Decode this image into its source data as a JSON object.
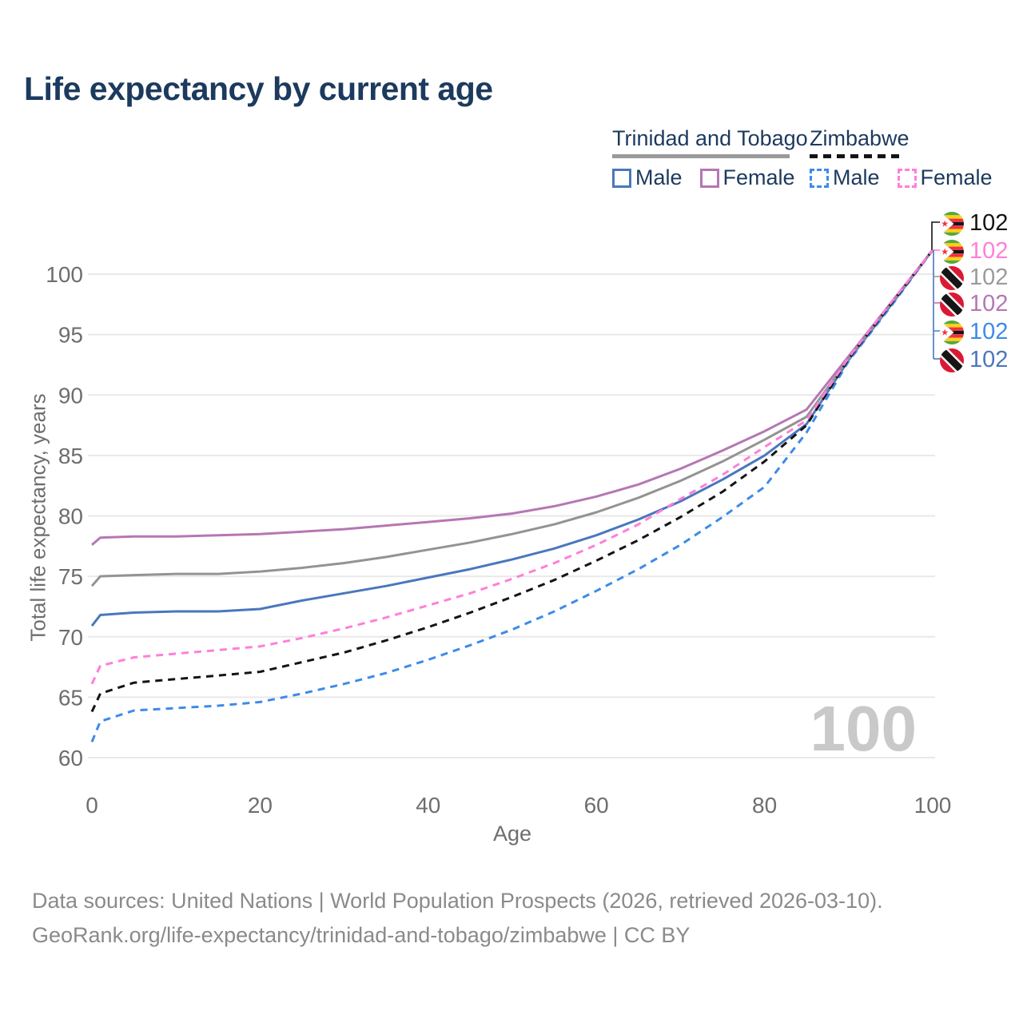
{
  "title": "Life expectancy by current age",
  "watermark": "100",
  "legend": {
    "groups": [
      {
        "label": "Trinidad and Tobago",
        "line_style": "solid",
        "underline_color": "#9a9a9a",
        "items": [
          {
            "label": "Male",
            "color": "#4a77bd"
          },
          {
            "label": "Female",
            "color": "#b577b3"
          }
        ]
      },
      {
        "label": "Zimbabwe",
        "line_style": "dashed",
        "underline_color": "#141414",
        "items": [
          {
            "label": "Male",
            "color": "#3d8be8"
          },
          {
            "label": "Female",
            "color": "#ff7fd8"
          }
        ]
      }
    ]
  },
  "end_labels": [
    {
      "flag": "zimbabwe",
      "series": "Zimbabwe Total",
      "value": "102",
      "color": "#141414"
    },
    {
      "flag": "zimbabwe",
      "series": "Zimbabwe Female",
      "value": "102",
      "color": "#ff7fd8"
    },
    {
      "flag": "trinidad-and-tobago",
      "series": "Trinidad and Tobago Total",
      "value": "102",
      "color": "#9a9a9a"
    },
    {
      "flag": "trinidad-and-tobago",
      "series": "Trinidad and Tobago Female",
      "value": "102",
      "color": "#b577b3"
    },
    {
      "flag": "zimbabwe",
      "series": "Zimbabwe Male",
      "value": "102",
      "color": "#3d8be8"
    },
    {
      "flag": "trinidad-and-tobago",
      "series": "Trinidad and Tobago Male",
      "value": "102",
      "color": "#4a77bd"
    }
  ],
  "footer": {
    "line1": "Data sources: United Nations | World Population Prospects (2026, retrieved 2026-03-10).",
    "line2": "GeoRank.org/life-expectancy/trinidad-and-tobago/zimbabwe | CC BY"
  },
  "chart_data": {
    "type": "line",
    "title": "Life expectancy by current age",
    "xlabel": "Age",
    "ylabel": "Total life expectancy, years",
    "xlim": [
      0,
      100
    ],
    "ylim": [
      60,
      103
    ],
    "x_ticks": [
      0,
      20,
      40,
      60,
      80,
      100
    ],
    "y_ticks": [
      60,
      65,
      70,
      75,
      80,
      85,
      90,
      95,
      100
    ],
    "grid": "horizontal",
    "legend_position": "top-right",
    "x": [
      0,
      1,
      5,
      10,
      15,
      20,
      25,
      30,
      35,
      40,
      45,
      50,
      55,
      60,
      65,
      70,
      75,
      80,
      85,
      90,
      95,
      100
    ],
    "series": [
      {
        "id": "tt_male",
        "name": "Trinidad and Tobago — Male",
        "color": "#4a77bd",
        "dash": null,
        "values": [
          70.9,
          71.8,
          72.0,
          72.1,
          72.1,
          72.3,
          73.0,
          73.6,
          74.2,
          74.9,
          75.6,
          76.4,
          77.3,
          78.4,
          79.7,
          81.2,
          83.0,
          85.0,
          87.6,
          92.9,
          97.4,
          102
        ]
      },
      {
        "id": "tt_overall",
        "name": "Trinidad and Tobago — Total",
        "color": "#939393",
        "dash": null,
        "values": [
          74.2,
          75.0,
          75.1,
          75.2,
          75.2,
          75.4,
          75.7,
          76.1,
          76.6,
          77.2,
          77.8,
          78.5,
          79.3,
          80.3,
          81.5,
          82.9,
          84.5,
          86.3,
          88.2,
          93.0,
          97.5,
          102
        ]
      },
      {
        "id": "tt_female",
        "name": "Trinidad and Tobago — Female",
        "color": "#b577b3",
        "dash": null,
        "values": [
          77.6,
          78.2,
          78.3,
          78.3,
          78.4,
          78.5,
          78.7,
          78.9,
          79.2,
          79.5,
          79.8,
          80.2,
          80.8,
          81.6,
          82.6,
          83.9,
          85.4,
          87.0,
          88.8,
          93.2,
          97.6,
          102
        ]
      },
      {
        "id": "zw_male",
        "name": "Zimbabwe — Male",
        "color": "#3d8be8",
        "dash": "9 7",
        "values": [
          61.3,
          63.0,
          63.9,
          64.1,
          64.3,
          64.6,
          65.3,
          66.1,
          67.0,
          68.1,
          69.3,
          70.6,
          72.1,
          73.8,
          75.6,
          77.6,
          79.9,
          82.4,
          86.9,
          92.8,
          97.3,
          102
        ]
      },
      {
        "id": "zw_overall",
        "name": "Zimbabwe — Total",
        "color": "#141414",
        "dash": "9 7",
        "values": [
          63.8,
          65.3,
          66.2,
          66.5,
          66.8,
          67.1,
          67.9,
          68.7,
          69.7,
          70.8,
          72.0,
          73.3,
          74.7,
          76.3,
          78.0,
          79.9,
          82.0,
          84.5,
          87.5,
          93.0,
          97.5,
          102
        ]
      },
      {
        "id": "zw_female",
        "name": "Zimbabwe — Female",
        "color": "#ff7fd8",
        "dash": "9 7",
        "values": [
          66.1,
          67.6,
          68.3,
          68.6,
          68.9,
          69.2,
          69.9,
          70.7,
          71.6,
          72.6,
          73.6,
          74.8,
          76.1,
          77.6,
          79.3,
          81.4,
          83.4,
          85.7,
          87.9,
          93.1,
          97.6,
          102
        ]
      }
    ]
  }
}
